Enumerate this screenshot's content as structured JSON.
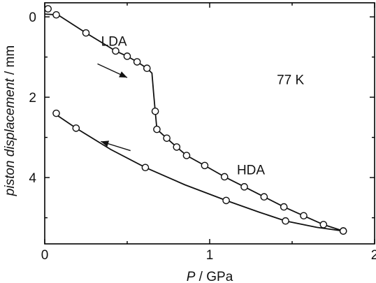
{
  "chart_data": {
    "type": "scatter",
    "title": "",
    "xlabel_italic": "P",
    "xlabel_rest": " / GPa",
    "ylabel_italic": "piston displacement",
    "ylabel_rest": " / mm",
    "xlim": [
      0,
      2
    ],
    "ylim": [
      5.65,
      -0.35
    ],
    "xticks": [
      0,
      1,
      2
    ],
    "yticks": [
      0,
      2,
      4
    ],
    "grid": false,
    "annotations": [
      {
        "text": "LDA",
        "x": 0.42,
        "y": 0.72
      },
      {
        "text": "77 K",
        "x": 1.49,
        "y": 1.68
      },
      {
        "text": "HDA",
        "x": 1.25,
        "y": 3.92
      }
    ],
    "arrows": [
      {
        "from": [
          0.32,
          1.17
        ],
        "to": [
          0.5,
          1.51
        ],
        "direction": "compression"
      },
      {
        "from": [
          0.52,
          3.33
        ],
        "to": [
          0.34,
          3.1
        ],
        "direction": "decompression"
      }
    ],
    "series": [
      {
        "direction": "compression",
        "x": [
          0.02,
          0.07,
          0.25,
          0.43,
          0.5,
          0.56,
          0.62,
          0.67,
          0.68,
          0.74,
          0.8,
          0.86,
          0.97,
          1.09,
          1.21,
          1.33,
          1.45,
          1.57,
          1.69,
          1.81
        ],
        "y": [
          -0.2,
          -0.05,
          0.4,
          0.85,
          0.98,
          1.12,
          1.28,
          2.35,
          2.8,
          3.02,
          3.24,
          3.45,
          3.7,
          3.98,
          4.23,
          4.48,
          4.73,
          4.95,
          5.17,
          5.33
        ],
        "fit_x": [
          0.0,
          0.08,
          0.25,
          0.43,
          0.5,
          0.56,
          0.62,
          0.65,
          0.66,
          0.67,
          0.68,
          0.74,
          0.8,
          0.86,
          0.97,
          1.09,
          1.21,
          1.33,
          1.45,
          1.57,
          1.69,
          1.81
        ],
        "fit_y": [
          -0.07,
          -0.05,
          0.4,
          0.85,
          0.98,
          1.12,
          1.28,
          1.4,
          1.9,
          2.35,
          2.8,
          3.02,
          3.24,
          3.45,
          3.7,
          3.98,
          4.23,
          4.48,
          4.73,
          4.95,
          5.17,
          5.33
        ]
      },
      {
        "direction": "decompression",
        "x": [
          0.07,
          0.19,
          0.61,
          1.1,
          1.46,
          1.81
        ],
        "y": [
          2.4,
          2.77,
          3.75,
          4.57,
          5.08,
          5.33
        ],
        "fit_x": [
          0.05,
          0.19,
          0.4,
          0.61,
          0.85,
          1.1,
          1.3,
          1.46,
          1.65,
          1.81
        ],
        "fit_y": [
          2.38,
          2.77,
          3.3,
          3.75,
          4.18,
          4.57,
          4.86,
          5.08,
          5.24,
          5.33
        ]
      }
    ]
  }
}
